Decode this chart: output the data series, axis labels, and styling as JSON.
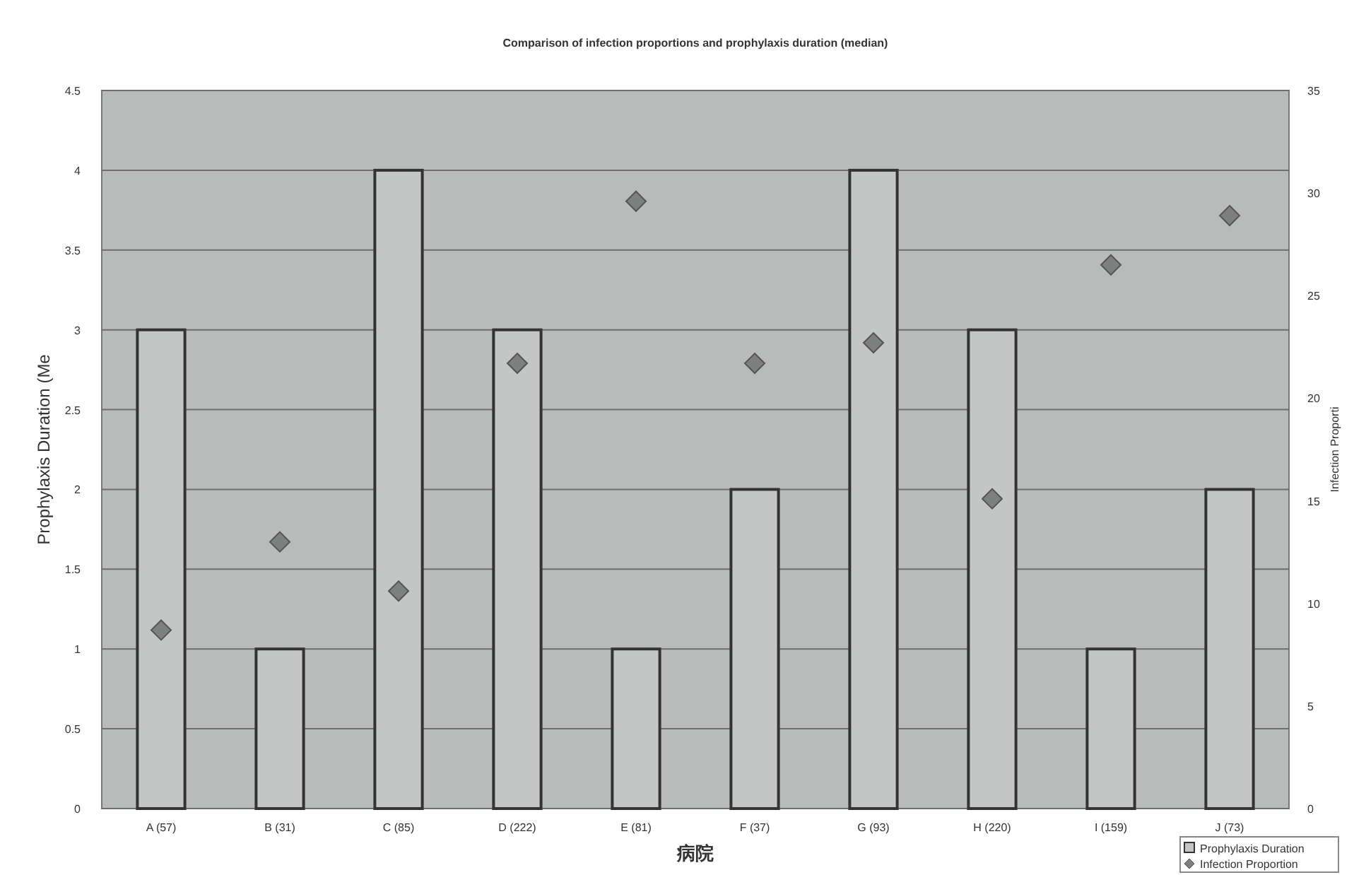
{
  "chart_data": {
    "type": "bar",
    "title": "Comparison of infection proportions and prophylaxis duration (median)",
    "xlabel": "病院",
    "ylabel": "Prophylaxis Duration (Me",
    "y2label": "Infection Proporti",
    "categories": [
      "A (57)",
      "B (31)",
      "C (85)",
      "D (222)",
      "E (81)",
      "F (37)",
      "G (93)",
      "H (220)",
      "I (159)",
      "J (73)"
    ],
    "series": [
      {
        "name": "Prophylaxis Duration",
        "color": "#c4c6c6",
        "values": [
          3,
          1,
          4,
          3,
          1,
          2,
          4,
          3,
          1,
          2
        ]
      },
      {
        "name": "Infection Proportion",
        "type": "scatter",
        "axis": "y2",
        "marker": "diamond",
        "color": "#7d807f",
        "values": [
          8.7,
          13.0,
          10.6,
          21.7,
          29.6,
          21.7,
          22.7,
          15.1,
          26.5,
          28.9
        ]
      }
    ],
    "ylim": [
      0,
      4.5
    ],
    "yticks": [
      0,
      0.5,
      1,
      1.5,
      2,
      2.5,
      3,
      3.5,
      4,
      4.5
    ],
    "y2lim": [
      0,
      35
    ],
    "y2ticks": [
      0,
      5,
      10,
      15,
      20,
      25,
      30,
      35
    ],
    "grid": "y",
    "legend": "bottom right"
  }
}
